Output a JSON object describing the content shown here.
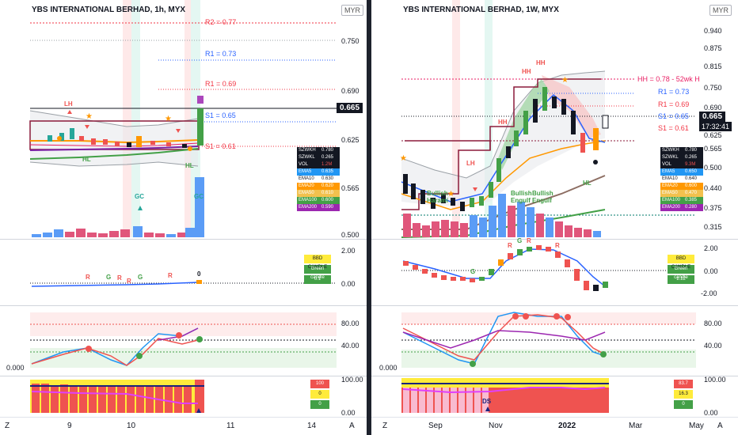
{
  "left": {
    "title": "YBS INTERNATIONAL BERHAD, 1h, MYX",
    "currency": "MYR",
    "price_axis": [
      "0.750",
      "0.690",
      "0.625",
      "0.565",
      "0.500"
    ],
    "price_tag": "0.665",
    "levels": [
      {
        "label": "R2 = 0.77",
        "color": "#f23645"
      },
      {
        "label": "R1 = 0.73",
        "color": "#2962ff"
      },
      {
        "label": "R1 = 0.69",
        "color": "#f23645"
      },
      {
        "label": "S1 = 0.65",
        "color": "#2962ff"
      },
      {
        "label": "S1 = 0.61",
        "color": "#f23645"
      }
    ],
    "signals": {
      "lh": "LH",
      "hl_1": "HL",
      "hl_2": "HL",
      "gc_1": "GC",
      "gc_2": "GC"
    },
    "legend": [
      {
        "k": "SZWKH",
        "v": "0.780",
        "color": "#131722"
      },
      {
        "k": "SZWKL",
        "v": "0.265",
        "color": "#131722"
      },
      {
        "k": "VOL",
        "v": "1.2M",
        "color": "#131722"
      },
      {
        "k": "EMA5",
        "v": "0.635",
        "color": "#2196f3"
      },
      {
        "k": "EMA10",
        "v": "0.630",
        "color": "#ffffff"
      },
      {
        "k": "EMA20",
        "v": "0.620",
        "color": "#ff9800"
      },
      {
        "k": "EMA50",
        "v": "0.610",
        "color": "#f2c14e"
      },
      {
        "k": "EMA100",
        "v": "0.600",
        "color": "#43a047"
      },
      {
        "k": "EMA200",
        "v": "0.590",
        "color": "#9c27b0"
      }
    ],
    "osc1": {
      "axis": [
        "2.00",
        "0.00"
      ],
      "labels": [
        "R",
        "G",
        "R",
        "R",
        "G",
        "R",
        "0"
      ],
      "box": [
        "BBD CANDLE",
        "Green candle",
        "0.1"
      ]
    },
    "osc2": {
      "axis": [
        "80.00",
        "40.00"
      ],
      "floor": "0.000"
    },
    "osc3": {
      "axis": [
        "100.00",
        "0.00"
      ],
      "box": [
        "100",
        "0",
        "0"
      ]
    },
    "time_axis": [
      "9",
      "10",
      "11",
      "14"
    ],
    "corner": "Z",
    "auto": "A"
  },
  "right": {
    "title": "YBS INTERNATIONAL BERHAD, 1W, MYX",
    "currency": "MYR",
    "price_axis": [
      "0.940",
      "0.875",
      "0.815",
      "0.750",
      "0.690",
      "0.625",
      "0.565",
      "0.500",
      "0.440",
      "0.375",
      "0.315"
    ],
    "price_tag": "0.665",
    "timer": "17:32:41",
    "levels": [
      {
        "label": "HH = 0.78 - 52wk H",
        "color": "#e91e63"
      },
      {
        "label": "R1 = 0.73",
        "color": "#2962ff"
      },
      {
        "label": "R1 = 0.69",
        "color": "#f23645"
      },
      {
        "label": "S1 = 0.65",
        "color": "#2962ff"
      },
      {
        "label": "S1 = 0.61",
        "color": "#f23645"
      }
    ],
    "signals": {
      "hh_1": "HH",
      "hh_2": "HH",
      "hh_3": "HH",
      "lh": "LH",
      "hl": "HL",
      "bullish_1": "Bullish Harami",
      "bullish_2": "Bullish Engulf",
      "bullish_3": "Bullish Engulf"
    },
    "legend": [
      {
        "k": "SZWKH",
        "v": "0.780",
        "color": "#131722"
      },
      {
        "k": "SZWKL",
        "v": "0.265",
        "color": "#131722"
      },
      {
        "k": "VOL",
        "v": "9.3M",
        "color": "#131722"
      },
      {
        "k": "EMA5",
        "v": "0.650",
        "color": "#2196f3"
      },
      {
        "k": "EMA10",
        "v": "0.640",
        "color": "#ffffff"
      },
      {
        "k": "EMA20",
        "v": "0.600",
        "color": "#ff9800"
      },
      {
        "k": "EMA50",
        "v": "0.470",
        "color": "#f2c14e"
      },
      {
        "k": "EMA100",
        "v": "0.385",
        "color": "#43a047"
      },
      {
        "k": "EMA200",
        "v": "0.280",
        "color": "#9c27b0"
      }
    ],
    "osc1": {
      "axis": [
        "2.00",
        "0.00",
        "-2.00"
      ],
      "labels": [
        "G",
        "R",
        "G",
        "R",
        "R"
      ],
      "box": [
        "BBD CANDLE",
        "Green candle",
        "1.12"
      ]
    },
    "osc2": {
      "axis": [
        "80.00",
        "40.00"
      ],
      "floor": "0.000"
    },
    "osc3": {
      "axis": [
        "100.00",
        "0.00"
      ],
      "box": [
        "83.7",
        "16.3",
        "0"
      ],
      "label": "DS"
    },
    "time_axis": [
      "Sep",
      "Nov",
      "2022",
      "Mar",
      "May"
    ],
    "corner": "Z",
    "auto": "A"
  }
}
